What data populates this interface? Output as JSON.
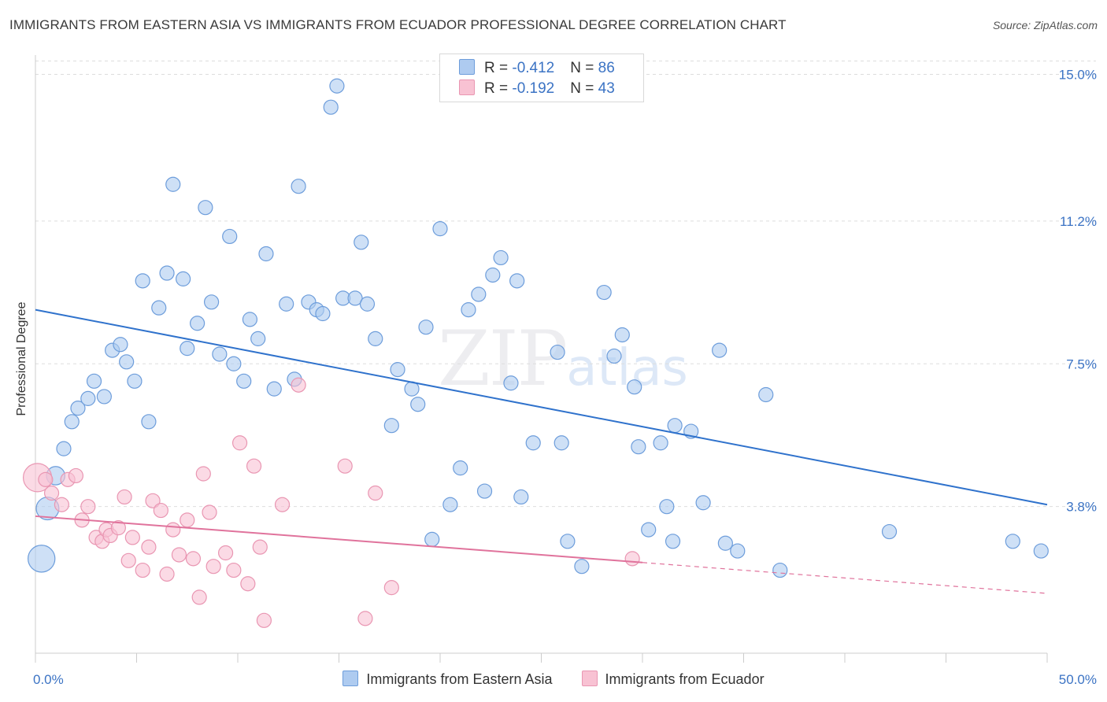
{
  "header": {
    "title": "IMMIGRANTS FROM EASTERN ASIA VS IMMIGRANTS FROM ECUADOR PROFESSIONAL DEGREE CORRELATION CHART",
    "source": "Source: ZipAtlas.com"
  },
  "watermark": {
    "zip": "ZIP",
    "atlas": "atlas"
  },
  "legend_top": [
    {
      "r_label": "R = ",
      "r_value": "-0.412",
      "n_label": "N = ",
      "n_value": "86"
    },
    {
      "r_label": "R = ",
      "r_value": "-0.192",
      "n_label": "N = ",
      "n_value": "43"
    }
  ],
  "colors": {
    "blue_fill": "#aecbf0",
    "blue_stroke": "#6d9ddb",
    "blue_line": "#2f72cc",
    "pink_fill": "#f8c2d3",
    "pink_stroke": "#e996b2",
    "pink_line": "#e0739c",
    "tick_label": "#3b73c4",
    "grid": "#dddddd"
  },
  "chart_data": {
    "type": "scatter",
    "title": "IMMIGRANTS FROM EASTERN ASIA VS IMMIGRANTS FROM ECUADOR PROFESSIONAL DEGREE CORRELATION CHART",
    "xlabel": "",
    "ylabel": "Professional Degree",
    "xlim": [
      0,
      50
    ],
    "ylim": [
      0,
      15.5
    ],
    "x_tick_labels": [
      "0.0%",
      "50.0%"
    ],
    "y_ticks": [
      3.8,
      7.5,
      11.2,
      15.0
    ],
    "y_tick_labels": [
      "3.8%",
      "7.5%",
      "11.2%",
      "15.0%"
    ],
    "grid": "horizontal dashed",
    "legend_placement": "bottom-center",
    "series": [
      {
        "name": "Immigrants from Eastern Asia",
        "r": -0.412,
        "n": 86,
        "trend": {
          "x": [
            0,
            50
          ],
          "y": [
            8.9,
            3.85
          ]
        },
        "points": [
          [
            0.3,
            2.45,
            1.9
          ],
          [
            0.6,
            3.75,
            1.6
          ],
          [
            1,
            4.6,
            1.3
          ],
          [
            1.4,
            5.3,
            1
          ],
          [
            1.8,
            6.0,
            1
          ],
          [
            2.1,
            6.35,
            1
          ],
          [
            2.6,
            6.6,
            1
          ],
          [
            2.9,
            7.05,
            1
          ],
          [
            3.4,
            6.65,
            1
          ],
          [
            3.8,
            7.85,
            1
          ],
          [
            4.2,
            8.0,
            1
          ],
          [
            4.5,
            7.55,
            1
          ],
          [
            4.9,
            7.05,
            1
          ],
          [
            5.3,
            9.65,
            1
          ],
          [
            5.6,
            6.0,
            1
          ],
          [
            6.1,
            8.95,
            1
          ],
          [
            6.5,
            9.85,
            1
          ],
          [
            6.8,
            12.15,
            1
          ],
          [
            7.3,
            9.7,
            1
          ],
          [
            7.5,
            7.9,
            1
          ],
          [
            8.0,
            8.55,
            1
          ],
          [
            8.4,
            11.55,
            1
          ],
          [
            8.7,
            9.1,
            1
          ],
          [
            9.1,
            7.75,
            1
          ],
          [
            9.6,
            10.8,
            1
          ],
          [
            9.8,
            7.5,
            1
          ],
          [
            10.3,
            7.05,
            1
          ],
          [
            10.6,
            8.65,
            1
          ],
          [
            11.0,
            8.15,
            1
          ],
          [
            11.4,
            10.35,
            1
          ],
          [
            11.8,
            6.85,
            1
          ],
          [
            12.4,
            9.05,
            1
          ],
          [
            12.8,
            7.1,
            1
          ],
          [
            13.0,
            12.1,
            1
          ],
          [
            13.5,
            9.1,
            1
          ],
          [
            13.9,
            8.9,
            1
          ],
          [
            14.2,
            8.8,
            1
          ],
          [
            14.6,
            14.15,
            1
          ],
          [
            14.9,
            14.7,
            1
          ],
          [
            15.2,
            9.2,
            1
          ],
          [
            15.8,
            9.2,
            1
          ],
          [
            16.1,
            10.65,
            1
          ],
          [
            16.4,
            9.05,
            1
          ],
          [
            16.8,
            8.15,
            1
          ],
          [
            17.6,
            5.9,
            1
          ],
          [
            17.9,
            7.35,
            1
          ],
          [
            18.6,
            6.85,
            1
          ],
          [
            18.9,
            6.45,
            1
          ],
          [
            19.3,
            8.45,
            1
          ],
          [
            19.6,
            2.95,
            1
          ],
          [
            20.0,
            11.0,
            1
          ],
          [
            20.5,
            3.85,
            1
          ],
          [
            21.0,
            4.8,
            1
          ],
          [
            21.4,
            8.9,
            1
          ],
          [
            21.9,
            9.3,
            1
          ],
          [
            22.2,
            4.2,
            1
          ],
          [
            22.6,
            9.8,
            1
          ],
          [
            23.0,
            10.25,
            1
          ],
          [
            23.5,
            7.0,
            1
          ],
          [
            23.8,
            9.65,
            1
          ],
          [
            24.0,
            4.05,
            1
          ],
          [
            24.6,
            5.45,
            1
          ],
          [
            25.8,
            7.8,
            1
          ],
          [
            26.0,
            5.45,
            1
          ],
          [
            26.3,
            2.9,
            1
          ],
          [
            27.0,
            2.25,
            1
          ],
          [
            28.1,
            9.35,
            1
          ],
          [
            28.6,
            7.7,
            1
          ],
          [
            29.0,
            8.25,
            1
          ],
          [
            29.6,
            6.9,
            1
          ],
          [
            29.8,
            5.35,
            1
          ],
          [
            30.3,
            3.2,
            1
          ],
          [
            30.9,
            5.45,
            1
          ],
          [
            31.2,
            3.8,
            1
          ],
          [
            31.5,
            2.9,
            1
          ],
          [
            31.6,
            5.9,
            1
          ],
          [
            32.4,
            5.75,
            1
          ],
          [
            33.0,
            3.9,
            1
          ],
          [
            33.8,
            7.85,
            1
          ],
          [
            34.1,
            2.85,
            1
          ],
          [
            34.7,
            2.65,
            1
          ],
          [
            36.1,
            6.7,
            1
          ],
          [
            36.8,
            2.15,
            1
          ],
          [
            42.2,
            3.15,
            1
          ],
          [
            48.3,
            2.9,
            1
          ],
          [
            49.7,
            2.65,
            1
          ]
        ]
      },
      {
        "name": "Immigrants from Ecuador",
        "r": -0.192,
        "n": 43,
        "trend": {
          "x": [
            0,
            30
          ],
          "y": [
            3.55,
            2.35
          ]
        },
        "trend_extension": {
          "x": [
            30,
            50
          ],
          "y": [
            2.35,
            1.55
          ]
        },
        "points": [
          [
            0.1,
            4.55,
            2
          ],
          [
            0.5,
            4.5,
            1
          ],
          [
            0.8,
            4.15,
            1
          ],
          [
            1.3,
            3.85,
            1
          ],
          [
            1.6,
            4.5,
            1
          ],
          [
            2.0,
            4.6,
            1
          ],
          [
            2.3,
            3.45,
            1
          ],
          [
            2.6,
            3.8,
            1
          ],
          [
            3.0,
            3.0,
            1
          ],
          [
            3.3,
            2.9,
            1
          ],
          [
            3.5,
            3.2,
            1
          ],
          [
            3.7,
            3.05,
            1
          ],
          [
            4.1,
            3.25,
            1
          ],
          [
            4.4,
            4.05,
            1
          ],
          [
            4.6,
            2.4,
            1
          ],
          [
            4.8,
            3.0,
            1
          ],
          [
            5.3,
            2.15,
            1
          ],
          [
            5.6,
            2.75,
            1
          ],
          [
            5.8,
            3.95,
            1
          ],
          [
            6.2,
            3.7,
            1
          ],
          [
            6.5,
            2.05,
            1
          ],
          [
            6.8,
            3.2,
            1
          ],
          [
            7.1,
            2.55,
            1
          ],
          [
            7.5,
            3.45,
            1
          ],
          [
            7.8,
            2.45,
            1
          ],
          [
            8.1,
            1.45,
            1
          ],
          [
            8.3,
            4.65,
            1
          ],
          [
            8.6,
            3.65,
            1
          ],
          [
            8.8,
            2.25,
            1
          ],
          [
            9.4,
            2.6,
            1
          ],
          [
            9.8,
            2.15,
            1
          ],
          [
            10.1,
            5.45,
            1
          ],
          [
            10.5,
            1.8,
            1
          ],
          [
            10.8,
            4.85,
            1
          ],
          [
            11.1,
            2.75,
            1
          ],
          [
            11.3,
            0.85,
            1
          ],
          [
            12.2,
            3.85,
            1
          ],
          [
            13.0,
            6.95,
            1
          ],
          [
            15.3,
            4.85,
            1
          ],
          [
            16.3,
            0.9,
            1
          ],
          [
            16.8,
            4.15,
            1
          ],
          [
            17.6,
            1.7,
            1
          ],
          [
            29.5,
            2.45,
            1
          ]
        ]
      }
    ]
  }
}
